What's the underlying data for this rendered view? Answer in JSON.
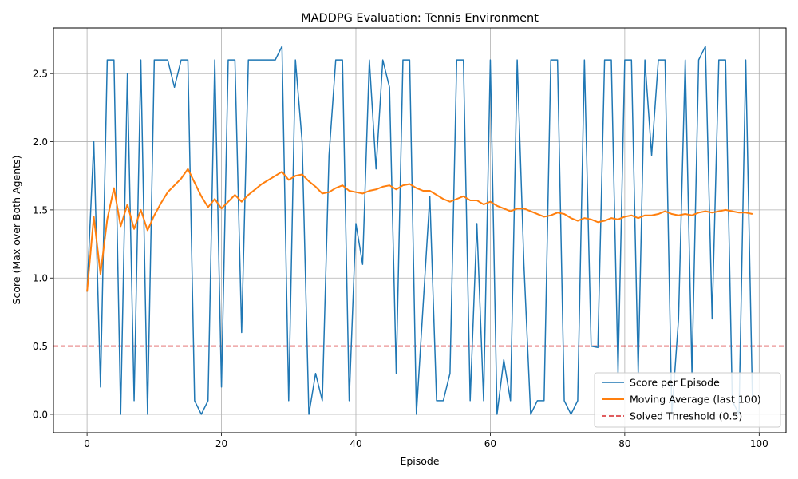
{
  "chart_data": {
    "type": "line",
    "title": "MADDPG Evaluation: Tennis Environment",
    "xlabel": "Episode",
    "ylabel": "Score (Max over Both Agents)",
    "xlim": [
      -5,
      104
    ],
    "ylim": [
      -0.135,
      2.835
    ],
    "xticks": [
      0,
      20,
      40,
      60,
      80,
      100
    ],
    "xtick_labels": [
      "0",
      "20",
      "40",
      "60",
      "80",
      "100"
    ],
    "yticks": [
      0.0,
      0.5,
      1.0,
      1.5,
      2.0,
      2.5
    ],
    "ytick_labels": [
      "0.0",
      "0.5",
      "1.0",
      "1.5",
      "2.0",
      "2.5"
    ],
    "grid": true,
    "legend_position": "bottom-right",
    "threshold": {
      "name": "Solved Threshold (0.5)",
      "value": 0.5,
      "color": "#d62728",
      "style": "dashed"
    },
    "series": [
      {
        "name": "Score per Episode",
        "color": "#1f77b4",
        "x": [
          0,
          1,
          2,
          3,
          4,
          5,
          6,
          7,
          8,
          9,
          10,
          11,
          12,
          13,
          14,
          15,
          16,
          17,
          18,
          19,
          20,
          21,
          22,
          23,
          24,
          25,
          26,
          27,
          28,
          29,
          30,
          31,
          32,
          33,
          34,
          35,
          36,
          37,
          38,
          39,
          40,
          41,
          42,
          43,
          44,
          45,
          46,
          47,
          48,
          49,
          50,
          51,
          52,
          53,
          54,
          55,
          56,
          57,
          58,
          59,
          60,
          61,
          62,
          63,
          64,
          65,
          66,
          67,
          68,
          69,
          70,
          71,
          72,
          73,
          74,
          75,
          76,
          77,
          78,
          79,
          80,
          81,
          82,
          83,
          84,
          85,
          86,
          87,
          88,
          89,
          90,
          91,
          92,
          93,
          94,
          95,
          96,
          97,
          98,
          99
        ],
        "values": [
          0.9,
          2.0,
          0.2,
          2.6,
          2.6,
          0.0,
          2.5,
          0.1,
          2.6,
          0.0,
          2.6,
          2.6,
          2.6,
          2.4,
          2.6,
          2.6,
          0.1,
          0.0,
          0.1,
          2.6,
          0.2,
          2.6,
          2.6,
          0.6,
          2.6,
          2.6,
          2.6,
          2.6,
          2.6,
          2.7,
          0.1,
          2.6,
          2.0,
          0.0,
          0.3,
          0.1,
          1.9,
          2.6,
          2.6,
          0.1,
          1.4,
          1.1,
          2.6,
          1.8,
          2.6,
          2.4,
          0.3,
          2.6,
          2.6,
          0.0,
          0.8,
          1.6,
          0.1,
          0.1,
          0.3,
          2.6,
          2.6,
          0.1,
          1.4,
          0.1,
          2.6,
          0.0,
          0.4,
          0.1,
          2.6,
          1.1,
          0.0,
          0.1,
          0.1,
          2.6,
          2.6,
          0.1,
          0.0,
          0.1,
          2.6,
          0.5,
          0.49,
          2.6,
          2.6,
          0.3,
          2.6,
          2.6,
          0.3,
          2.6,
          1.9,
          2.6,
          2.6,
          0.0,
          0.7,
          2.6,
          0.3,
          2.6,
          2.7,
          0.7,
          2.6,
          2.6,
          0.1,
          0.0,
          2.6,
          0.1
        ]
      },
      {
        "name": "Moving Average (last 100)",
        "color": "#ff7f0e",
        "x": [
          0,
          1,
          2,
          3,
          4,
          5,
          6,
          7,
          8,
          9,
          10,
          11,
          12,
          13,
          14,
          15,
          16,
          17,
          18,
          19,
          20,
          21,
          22,
          23,
          24,
          25,
          26,
          27,
          28,
          29,
          30,
          31,
          32,
          33,
          34,
          35,
          36,
          37,
          38,
          39,
          40,
          41,
          42,
          43,
          44,
          45,
          46,
          47,
          48,
          49,
          50,
          51,
          52,
          53,
          54,
          55,
          56,
          57,
          58,
          59,
          60,
          61,
          62,
          63,
          64,
          65,
          66,
          67,
          68,
          69,
          70,
          71,
          72,
          73,
          74,
          75,
          76,
          77,
          78,
          79,
          80,
          81,
          82,
          83,
          84,
          85,
          86,
          87,
          88,
          89,
          90,
          91,
          92,
          93,
          94,
          95,
          96,
          97,
          98,
          99
        ],
        "values": [
          0.9,
          1.45,
          1.03,
          1.43,
          1.66,
          1.38,
          1.54,
          1.36,
          1.5,
          1.35,
          1.46,
          1.55,
          1.63,
          1.68,
          1.73,
          1.8,
          1.7,
          1.6,
          1.52,
          1.58,
          1.51,
          1.56,
          1.61,
          1.56,
          1.61,
          1.65,
          1.69,
          1.72,
          1.75,
          1.78,
          1.72,
          1.75,
          1.76,
          1.71,
          1.67,
          1.62,
          1.63,
          1.66,
          1.68,
          1.64,
          1.63,
          1.62,
          1.64,
          1.65,
          1.67,
          1.68,
          1.65,
          1.68,
          1.69,
          1.66,
          1.64,
          1.64,
          1.61,
          1.58,
          1.56,
          1.58,
          1.6,
          1.57,
          1.57,
          1.54,
          1.56,
          1.53,
          1.51,
          1.49,
          1.51,
          1.51,
          1.49,
          1.47,
          1.45,
          1.46,
          1.48,
          1.47,
          1.44,
          1.42,
          1.44,
          1.43,
          1.41,
          1.42,
          1.44,
          1.43,
          1.45,
          1.46,
          1.44,
          1.46,
          1.46,
          1.47,
          1.49,
          1.47,
          1.46,
          1.47,
          1.46,
          1.48,
          1.49,
          1.48,
          1.49,
          1.5,
          1.49,
          1.48,
          1.48,
          1.47
        ]
      }
    ]
  }
}
